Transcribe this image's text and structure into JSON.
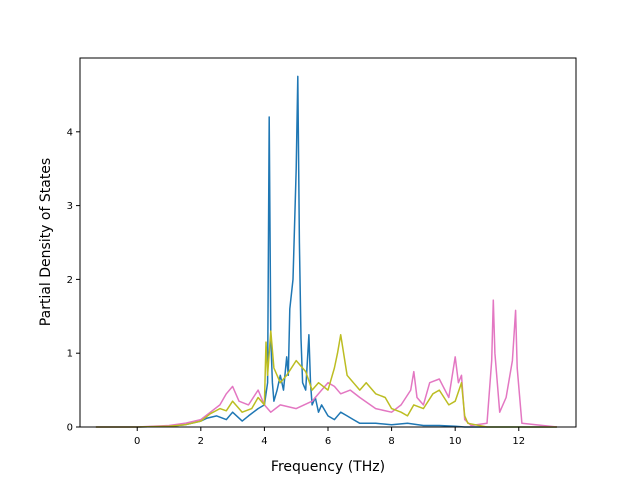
{
  "chart_data": {
    "type": "line",
    "title": "",
    "xlabel": "Frequency (THz)",
    "ylabel": "Partial Density of States",
    "xlim": [
      -1.8,
      13.8
    ],
    "ylim": [
      0,
      5.0
    ],
    "xticks": [
      0,
      2,
      4,
      6,
      8,
      10,
      12
    ],
    "yticks": [
      0,
      1,
      2,
      3,
      4
    ],
    "grid": false,
    "legend": "none",
    "series": [
      {
        "color": "#1f77b4",
        "x": [
          -1.3,
          0.0,
          1.0,
          1.5,
          2.0,
          2.2,
          2.5,
          2.8,
          3.0,
          3.3,
          3.5,
          3.8,
          4.0,
          4.1,
          4.15,
          4.2,
          4.25,
          4.3,
          4.4,
          4.5,
          4.6,
          4.7,
          4.75,
          4.8,
          4.9,
          5.0,
          5.05,
          5.1,
          5.15,
          5.2,
          5.3,
          5.4,
          5.45,
          5.5,
          5.6,
          5.7,
          5.8,
          6.0,
          6.2,
          6.4,
          6.6,
          6.8,
          7.0,
          7.5,
          8.0,
          8.5,
          9.0,
          9.5,
          10.0,
          10.3,
          11.0,
          12.0,
          13.2
        ],
        "values": [
          0,
          0,
          0.01,
          0.03,
          0.08,
          0.12,
          0.15,
          0.1,
          0.2,
          0.08,
          0.15,
          0.25,
          0.3,
          0.6,
          4.2,
          1.2,
          0.6,
          0.35,
          0.5,
          0.7,
          0.5,
          0.95,
          0.7,
          1.6,
          2.0,
          3.5,
          4.75,
          2.5,
          1.2,
          0.6,
          0.5,
          1.25,
          0.6,
          0.3,
          0.4,
          0.2,
          0.3,
          0.15,
          0.1,
          0.2,
          0.15,
          0.1,
          0.05,
          0.05,
          0.03,
          0.05,
          0.02,
          0.02,
          0.01,
          0,
          0,
          0,
          0
        ]
      },
      {
        "color": "#e377c2",
        "x": [
          -1.3,
          0.0,
          1.0,
          1.5,
          2.0,
          2.3,
          2.6,
          2.8,
          3.0,
          3.2,
          3.5,
          3.8,
          4.0,
          4.2,
          4.5,
          5.0,
          5.5,
          5.8,
          6.0,
          6.2,
          6.4,
          6.7,
          7.0,
          7.5,
          8.0,
          8.3,
          8.6,
          8.7,
          8.8,
          9.0,
          9.2,
          9.5,
          9.8,
          10.0,
          10.1,
          10.2,
          10.3,
          10.5,
          11.0,
          11.15,
          11.2,
          11.25,
          11.4,
          11.6,
          11.8,
          11.9,
          11.95,
          12.1,
          13.2
        ],
        "values": [
          0,
          0,
          0.02,
          0.05,
          0.1,
          0.2,
          0.3,
          0.45,
          0.55,
          0.35,
          0.3,
          0.5,
          0.3,
          0.2,
          0.3,
          0.25,
          0.35,
          0.5,
          0.6,
          0.55,
          0.45,
          0.5,
          0.4,
          0.25,
          0.2,
          0.3,
          0.5,
          0.75,
          0.4,
          0.3,
          0.6,
          0.65,
          0.4,
          0.95,
          0.6,
          0.7,
          0.1,
          0.02,
          0.05,
          0.9,
          1.72,
          1.0,
          0.2,
          0.4,
          0.9,
          1.58,
          0.8,
          0.05,
          0
        ]
      },
      {
        "color": "#bcbd22",
        "x": [
          -1.3,
          0.0,
          1.0,
          1.5,
          2.0,
          2.3,
          2.6,
          2.8,
          3.0,
          3.3,
          3.6,
          3.8,
          4.0,
          4.05,
          4.1,
          4.2,
          4.3,
          4.5,
          4.7,
          5.0,
          5.3,
          5.5,
          5.7,
          6.0,
          6.2,
          6.3,
          6.4,
          6.6,
          6.8,
          7.0,
          7.2,
          7.5,
          7.8,
          8.0,
          8.3,
          8.5,
          8.7,
          9.0,
          9.3,
          9.5,
          9.8,
          10.0,
          10.2,
          10.3,
          10.4,
          11.0,
          12.0,
          13.2
        ],
        "values": [
          0,
          0,
          0.01,
          0.03,
          0.08,
          0.18,
          0.25,
          0.22,
          0.35,
          0.2,
          0.25,
          0.4,
          0.3,
          1.15,
          0.7,
          1.3,
          0.8,
          0.6,
          0.7,
          0.9,
          0.75,
          0.5,
          0.6,
          0.5,
          0.8,
          1.0,
          1.25,
          0.7,
          0.6,
          0.5,
          0.6,
          0.45,
          0.4,
          0.25,
          0.2,
          0.15,
          0.3,
          0.25,
          0.45,
          0.5,
          0.3,
          0.35,
          0.6,
          0.15,
          0.05,
          0,
          0,
          0
        ]
      }
    ]
  }
}
